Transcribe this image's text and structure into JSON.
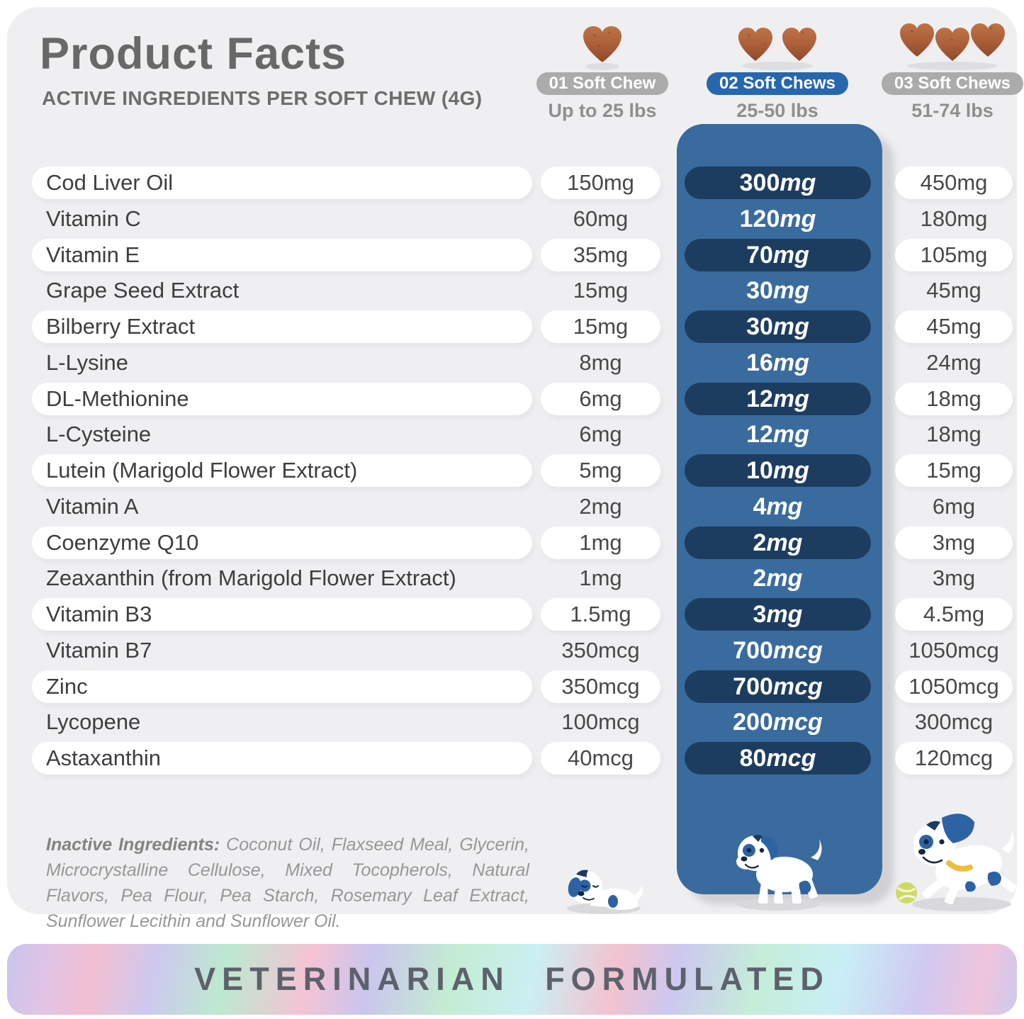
{
  "header": {
    "title": "Product Facts",
    "subtitle": "ACTIVE INGREDIENTS PER SOFT CHEW (4G)"
  },
  "columns": [
    {
      "badge": "01 Soft Chew",
      "weight": "Up to 25 lbs",
      "chew_count": "1",
      "highlighted": false
    },
    {
      "badge": "02 Soft Chews",
      "weight": "25-50 lbs",
      "chew_count": "2",
      "highlighted": true
    },
    {
      "badge": "03 Soft Chews",
      "weight": "51-74 lbs",
      "chew_count": "3",
      "highlighted": false
    }
  ],
  "table": {
    "rows": [
      {
        "name": "Cod Liver Oil",
        "col1": "150mg",
        "col2": {
          "amount": "300",
          "unit": "mg"
        },
        "col3": "450mg"
      },
      {
        "name": "Vitamin C",
        "col1": "60mg",
        "col2": {
          "amount": "120",
          "unit": "mg"
        },
        "col3": "180mg"
      },
      {
        "name": "Vitamin E",
        "col1": "35mg",
        "col2": {
          "amount": "70",
          "unit": "mg"
        },
        "col3": "105mg"
      },
      {
        "name": "Grape Seed Extract",
        "col1": "15mg",
        "col2": {
          "amount": "30",
          "unit": "mg"
        },
        "col3": "45mg"
      },
      {
        "name": "Bilberry Extract",
        "col1": "15mg",
        "col2": {
          "amount": "30",
          "unit": "mg"
        },
        "col3": "45mg"
      },
      {
        "name": "L-Lysine",
        "col1": "8mg",
        "col2": {
          "amount": "16",
          "unit": "mg"
        },
        "col3": "24mg"
      },
      {
        "name": "DL-Methionine",
        "col1": "6mg",
        "col2": {
          "amount": "12",
          "unit": "mg"
        },
        "col3": "18mg"
      },
      {
        "name": "L-Cysteine",
        "col1": "6mg",
        "col2": {
          "amount": "12",
          "unit": "mg"
        },
        "col3": "18mg"
      },
      {
        "name": "Lutein (Marigold Flower Extract)",
        "col1": "5mg",
        "col2": {
          "amount": "10",
          "unit": "mg"
        },
        "col3": "15mg"
      },
      {
        "name": "Vitamin A",
        "col1": "2mg",
        "col2": {
          "amount": "4",
          "unit": "mg"
        },
        "col3": "6mg"
      },
      {
        "name": "Coenzyme Q10",
        "col1": "1mg",
        "col2": {
          "amount": "2",
          "unit": "mg"
        },
        "col3": "3mg"
      },
      {
        "name": "Zeaxanthin (from Marigold Flower Extract)",
        "col1": "1mg",
        "col2": {
          "amount": "2",
          "unit": "mg"
        },
        "col3": "3mg"
      },
      {
        "name": "Vitamin B3",
        "col1": "1.5mg",
        "col2": {
          "amount": "3",
          "unit": "mg"
        },
        "col3": "4.5mg"
      },
      {
        "name": "Vitamin B7",
        "col1": "350mcg",
        "col2": {
          "amount": "700",
          "unit": "mcg"
        },
        "col3": "1050mcg"
      },
      {
        "name": "Zinc",
        "col1": "350mcg",
        "col2": {
          "amount": "700",
          "unit": "mcg"
        },
        "col3": "1050mcg"
      },
      {
        "name": "Lycopene",
        "col1": "100mcg",
        "col2": {
          "amount": "200",
          "unit": "mcg"
        },
        "col3": "300mcg"
      },
      {
        "name": "Astaxanthin",
        "col1": "40mcg",
        "col2": {
          "amount": "80",
          "unit": "mcg"
        },
        "col3": "120mcg"
      }
    ]
  },
  "inactive": {
    "label": "Inactive Ingredients:",
    "text": " Coconut Oil, Flaxseed Meal, Glycerin, Microcrystalline Cellulose, Mixed Tocopherols, Natural Flavors, Pea Flour, Pea Starch, Rosemary Leaf Extract, Sunflower Lecithin and Sunflower Oil."
  },
  "footer": {
    "banner": "VETERINARIAN FORMULATED"
  },
  "colors": {
    "card_background": "#efeff1",
    "highlight_panel_blue": "#3a6b9e",
    "highlight_pill_navy": "#1d3d60",
    "badge_blue": "#2767ad",
    "badge_gray": "#ababab",
    "chew_brown": "#ad6039",
    "dog_blue": "#2d63a5",
    "banner_text": "#5d616b"
  }
}
